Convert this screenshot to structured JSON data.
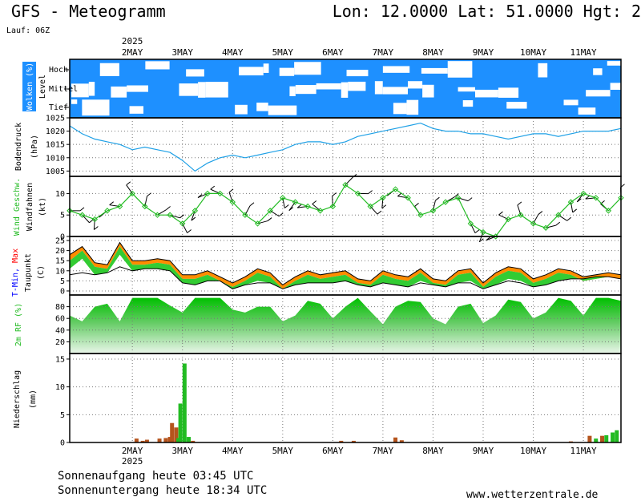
{
  "header": {
    "title": "GFS - Meteogramm",
    "coords": "Lon: 12.0000 Lat: 51.0000 Hgt: 2",
    "run": "Lauf: 06Z"
  },
  "footer": {
    "sunrise": "Sonnenaufgang heute 03:45 UTC",
    "sunset": "Sonnenuntergang heute 18:34 UTC",
    "site": "www.wetterzentrale.de"
  },
  "colors": {
    "cloud_blue": "#1e90ff",
    "pressure_line": "#1ea0e6",
    "wind_green": "#22bb22",
    "temp_min_blue": "#0000ff",
    "temp_max_red": "#ff0000",
    "orange_fill": "#ff8c00",
    "green_fill": "#33cc33",
    "rain_green": "#22bb22",
    "rain_brown": "#b5541c"
  },
  "chart_data": [
    {
      "type": "heatmap",
      "panel": "clouds",
      "ylabel": "Wolken (%)",
      "ylabel2": "Level",
      "levels": [
        "Hoch",
        "Mittel",
        "Tief"
      ],
      "x_ticks": [
        "2MAY",
        "3MAY",
        "4MAY",
        "5MAY",
        "6MAY",
        "7MAY",
        "8MAY",
        "9MAY",
        "10MAY",
        "11MAY"
      ],
      "x_year": "2025"
    },
    {
      "type": "line",
      "panel": "pressure",
      "ylabel": "Bodendruck",
      "unit": "(hPa)",
      "y_ticks": [
        1005,
        1010,
        1015,
        1020,
        1025
      ],
      "ylim": [
        1003,
        1025
      ],
      "x": [
        0,
        6,
        12,
        18,
        24,
        30,
        36,
        42,
        48,
        54,
        60,
        66,
        72,
        78,
        84,
        90,
        96,
        102,
        108,
        114,
        120,
        126,
        132,
        138,
        144,
        150,
        156,
        162,
        168,
        174,
        180,
        186,
        192,
        198,
        204,
        210,
        216,
        222,
        228,
        234,
        240,
        246,
        252,
        258,
        264
      ],
      "values": [
        1022,
        1019,
        1017,
        1016,
        1015,
        1013,
        1014,
        1013,
        1012,
        1009,
        1005,
        1008,
        1010,
        1011,
        1010,
        1011,
        1012,
        1013,
        1015,
        1016,
        1016,
        1015,
        1016,
        1018,
        1019,
        1020,
        1021,
        1022,
        1023,
        1021,
        1020,
        1020,
        1019,
        1019,
        1018,
        1017,
        1018,
        1019,
        1019,
        1018,
        1019,
        1020,
        1020,
        1020,
        1021
      ]
    },
    {
      "type": "line",
      "panel": "wind",
      "ylabel": "Wind Geschw.",
      "ylabel2": "Windfahnen",
      "unit": "(kt)",
      "y_ticks": [
        0,
        5,
        10
      ],
      "ylim": [
        0,
        14
      ],
      "x": [
        0,
        6,
        12,
        18,
        24,
        30,
        36,
        42,
        48,
        54,
        60,
        66,
        72,
        78,
        84,
        90,
        96,
        102,
        108,
        114,
        120,
        126,
        132,
        138,
        144,
        150,
        156,
        162,
        168,
        174,
        180,
        186,
        192,
        198,
        204,
        210,
        216,
        222,
        228,
        234,
        240,
        246,
        252,
        258,
        264
      ],
      "values": [
        6,
        5,
        4,
        6,
        7,
        10,
        7,
        5,
        5,
        3,
        6,
        10,
        10,
        8,
        5,
        3,
        6,
        9,
        8,
        7,
        6,
        7,
        12,
        10,
        7,
        9,
        11,
        9,
        5,
        6,
        8,
        9,
        3,
        1,
        0,
        4,
        5,
        3,
        2,
        5,
        8,
        10,
        9,
        6,
        9
      ]
    },
    {
      "type": "area",
      "panel": "temperature",
      "ylabel": "T-Min, Max",
      "ylabel2": "Taupunkt",
      "unit": "(C)",
      "y_ticks": [
        0,
        5,
        10,
        15,
        20,
        25
      ],
      "ylim": [
        -2,
        27
      ],
      "x": [
        0,
        6,
        12,
        18,
        24,
        30,
        36,
        42,
        48,
        54,
        60,
        66,
        72,
        78,
        84,
        90,
        96,
        102,
        108,
        114,
        120,
        126,
        132,
        138,
        144,
        150,
        156,
        162,
        168,
        174,
        180,
        186,
        192,
        198,
        204,
        210,
        216,
        222,
        228,
        234,
        240,
        246,
        252,
        258,
        264
      ],
      "series": [
        {
          "name": "T-Max",
          "values": [
            18,
            22,
            14,
            13,
            24,
            15,
            15,
            16,
            15,
            8,
            8,
            10,
            7,
            4,
            7,
            11,
            9,
            3,
            7,
            10,
            8,
            9,
            10,
            6,
            5,
            10,
            8,
            7,
            11,
            6,
            5,
            10,
            11,
            4,
            9,
            12,
            11,
            6,
            8,
            11,
            10,
            7,
            8,
            9,
            8
          ]
        },
        {
          "name": "T-Min",
          "values": [
            15,
            20,
            12,
            11,
            22,
            13,
            13,
            14,
            13,
            6,
            6,
            8,
            5,
            2,
            5,
            9,
            7,
            1,
            5,
            8,
            6,
            7,
            8,
            4,
            3,
            8,
            6,
            5,
            9,
            4,
            3,
            8,
            9,
            2,
            7,
            10,
            9,
            4,
            6,
            9,
            8,
            5,
            6,
            7,
            6
          ]
        },
        {
          "name": "Taupunkt",
          "values": [
            8,
            9,
            8,
            9,
            12,
            10,
            11,
            11,
            10,
            4,
            3,
            5,
            5,
            1,
            3,
            4,
            4,
            1,
            3,
            4,
            4,
            4,
            5,
            3,
            2,
            4,
            3,
            2,
            4,
            3,
            2,
            4,
            4,
            1,
            3,
            5,
            4,
            2,
            3,
            5,
            6,
            6,
            7,
            7,
            6
          ]
        }
      ]
    },
    {
      "type": "area",
      "panel": "humidity",
      "ylabel": "2m RF (%)",
      "y_ticks": [
        20,
        40,
        60,
        80
      ],
      "ylim": [
        0,
        100
      ],
      "x": [
        0,
        6,
        12,
        18,
        24,
        30,
        36,
        42,
        48,
        54,
        60,
        66,
        72,
        78,
        84,
        90,
        96,
        102,
        108,
        114,
        120,
        126,
        132,
        138,
        144,
        150,
        156,
        162,
        168,
        174,
        180,
        186,
        192,
        198,
        204,
        210,
        216,
        222,
        228,
        234,
        240,
        246,
        252,
        258,
        264
      ],
      "values": [
        65,
        55,
        80,
        85,
        55,
        95,
        95,
        95,
        82,
        70,
        95,
        95,
        95,
        75,
        70,
        80,
        80,
        55,
        65,
        90,
        85,
        60,
        80,
        95,
        72,
        50,
        80,
        90,
        88,
        60,
        50,
        80,
        85,
        52,
        65,
        92,
        88,
        60,
        70,
        95,
        90,
        65,
        95,
        95,
        90
      ]
    },
    {
      "type": "bar",
      "panel": "precipitation",
      "ylabel": "Niederschlag",
      "unit": "(mm)",
      "y_ticks": [
        0,
        5,
        10,
        15
      ],
      "ylim": [
        0,
        16
      ],
      "x_ticks": [
        "2MAY",
        "3MAY",
        "4MAY",
        "5MAY",
        "6MAY",
        "7MAY",
        "8MAY",
        "9MAY",
        "10MAY",
        "11MAY"
      ],
      "x_year": "2025",
      "bars": [
        {
          "h": 32,
          "v": 0.7,
          "kind": "conv"
        },
        {
          "h": 35,
          "v": 0.3,
          "kind": "conv"
        },
        {
          "h": 37,
          "v": 0.5,
          "kind": "conv"
        },
        {
          "h": 43,
          "v": 0.7,
          "kind": "conv"
        },
        {
          "h": 46,
          "v": 0.8,
          "kind": "conv"
        },
        {
          "h": 48,
          "v": 1.0,
          "kind": "conv"
        },
        {
          "h": 49,
          "v": 3.5,
          "kind": "conv"
        },
        {
          "h": 51,
          "v": 2.7,
          "kind": "conv"
        },
        {
          "h": 52,
          "v": 0.8,
          "kind": "large"
        },
        {
          "h": 53,
          "v": 7.0,
          "kind": "large"
        },
        {
          "h": 55,
          "v": 14.2,
          "kind": "large"
        },
        {
          "h": 57,
          "v": 1.0,
          "kind": "large"
        },
        {
          "h": 59,
          "v": 0.3,
          "kind": "conv"
        },
        {
          "h": 130,
          "v": 0.3,
          "kind": "conv"
        },
        {
          "h": 136,
          "v": 0.3,
          "kind": "conv"
        },
        {
          "h": 156,
          "v": 0.9,
          "kind": "conv"
        },
        {
          "h": 159,
          "v": 0.4,
          "kind": "conv"
        },
        {
          "h": 240,
          "v": 0.2,
          "kind": "conv"
        },
        {
          "h": 249,
          "v": 1.2,
          "kind": "conv"
        },
        {
          "h": 252,
          "v": 0.7,
          "kind": "large"
        },
        {
          "h": 255,
          "v": 1.2,
          "kind": "conv"
        },
        {
          "h": 257,
          "v": 1.3,
          "kind": "large"
        },
        {
          "h": 260,
          "v": 1.8,
          "kind": "large"
        },
        {
          "h": 262,
          "v": 2.2,
          "kind": "large"
        }
      ]
    }
  ]
}
